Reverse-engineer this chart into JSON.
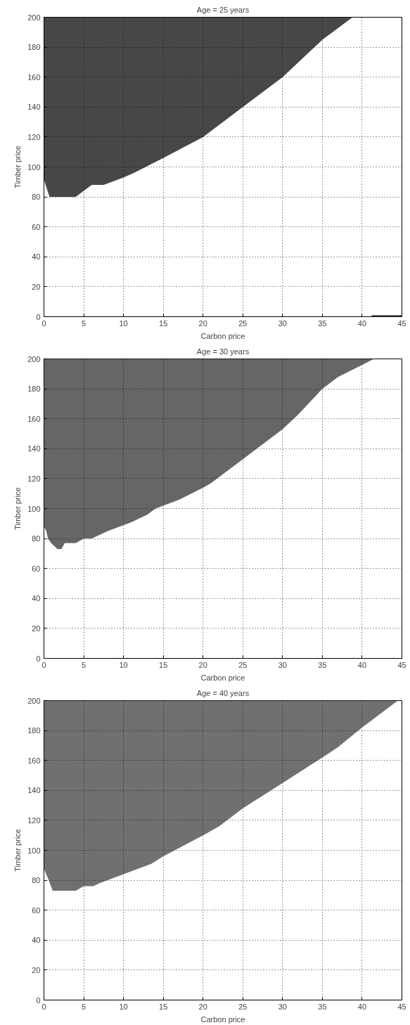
{
  "chart_data": [
    {
      "type": "area",
      "stacked": true,
      "title": "Age = 25 years",
      "xlabel": "Carbon price",
      "ylabel": "Timber price",
      "xlim": [
        0,
        45
      ],
      "ylim": [
        0,
        200
      ],
      "xticks": [
        0,
        5,
        10,
        15,
        20,
        25,
        30,
        35,
        40,
        45
      ],
      "yticks": [
        0,
        20,
        40,
        60,
        80,
        100,
        120,
        140,
        160,
        180,
        200
      ],
      "grid": true,
      "series": [
        {
          "color": "#ffffff",
          "x": [
            0,
            0.2,
            0.7,
            4,
            5,
            6,
            7.5,
            10,
            11.3,
            15,
            20,
            25,
            30,
            35,
            38.8
          ],
          "values": [
            92,
            88,
            80,
            80,
            84,
            88,
            88,
            93,
            96,
            106,
            120,
            140,
            160,
            185,
            200
          ]
        },
        {
          "color": "#474747",
          "x": [
            0,
            0.2,
            0.7,
            4,
            5,
            6,
            7.5,
            10,
            11.3,
            15,
            20,
            25,
            30,
            35,
            38.8
          ],
          "values": [
            108,
            112,
            120,
            120,
            116,
            112,
            112,
            107,
            104,
            94,
            80,
            60,
            40,
            15,
            0
          ]
        },
        {
          "type": "line",
          "color": "#474747",
          "x": [
            41.2,
            45
          ],
          "values": [
            0.5,
            0.5
          ]
        }
      ]
    },
    {
      "type": "area",
      "stacked": true,
      "title": "Age = 30 years",
      "xlabel": "Carbon price",
      "ylabel": "Timber price",
      "xlim": [
        0,
        45
      ],
      "ylim": [
        0,
        200
      ],
      "xticks": [
        0,
        5,
        10,
        15,
        20,
        25,
        30,
        35,
        40,
        45
      ],
      "yticks": [
        0,
        20,
        40,
        60,
        80,
        100,
        120,
        140,
        160,
        180,
        200
      ],
      "grid": true,
      "series": [
        {
          "color": "#ffffff",
          "x": [
            0,
            0.3,
            0.5,
            0.9,
            1.7,
            2.2,
            2.6,
            4,
            5,
            6,
            8,
            10,
            11,
            13,
            14,
            17,
            20,
            21,
            25,
            30,
            32,
            35,
            37,
            41.5
          ],
          "values": [
            88,
            85,
            80,
            77,
            73,
            73,
            77,
            77,
            80,
            80,
            85,
            89,
            91,
            96,
            100,
            106,
            114,
            117,
            133,
            153,
            163,
            180,
            188,
            200
          ]
        },
        {
          "color": "#666666",
          "x": [
            0,
            0.3,
            0.5,
            0.9,
            1.7,
            2.2,
            2.6,
            4,
            5,
            6,
            8,
            10,
            11,
            13,
            14,
            17,
            20,
            21,
            25,
            30,
            32,
            35,
            37,
            41.5
          ],
          "values": [
            112,
            115,
            120,
            123,
            127,
            127,
            123,
            123,
            120,
            120,
            115,
            111,
            109,
            104,
            100,
            94,
            86,
            83,
            67,
            47,
            37,
            20,
            12,
            0
          ]
        }
      ]
    },
    {
      "type": "area",
      "stacked": true,
      "title": "Age = 40 years",
      "xlabel": "Carbon price",
      "ylabel": "Timber price",
      "xlim": [
        0,
        45
      ],
      "ylim": [
        0,
        200
      ],
      "xticks": [
        0,
        5,
        10,
        15,
        20,
        25,
        30,
        35,
        40,
        45
      ],
      "yticks": [
        0,
        20,
        40,
        60,
        80,
        100,
        120,
        140,
        160,
        180,
        200
      ],
      "grid": true,
      "series": [
        {
          "color": "#ffffff",
          "x": [
            0,
            0.2,
            0.6,
            1.1,
            4,
            5,
            6.2,
            7,
            10,
            11,
            13.5,
            15,
            20,
            22,
            25,
            30,
            35,
            37,
            40,
            44.5
          ],
          "values": [
            88,
            85,
            80,
            73,
            73,
            76,
            76,
            78,
            84,
            86,
            91,
            96,
            110,
            116,
            128,
            145,
            162,
            169,
            182,
            200
          ]
        },
        {
          "color": "#707070",
          "x": [
            0,
            0.2,
            0.6,
            1.1,
            4,
            5,
            6.2,
            7,
            10,
            11,
            13.5,
            15,
            20,
            22,
            25,
            30,
            35,
            37,
            40,
            44.5
          ],
          "values": [
            112,
            115,
            120,
            127,
            127,
            124,
            124,
            122,
            116,
            114,
            109,
            104,
            90,
            84,
            72,
            55,
            38,
            31,
            18,
            0
          ]
        }
      ]
    }
  ]
}
